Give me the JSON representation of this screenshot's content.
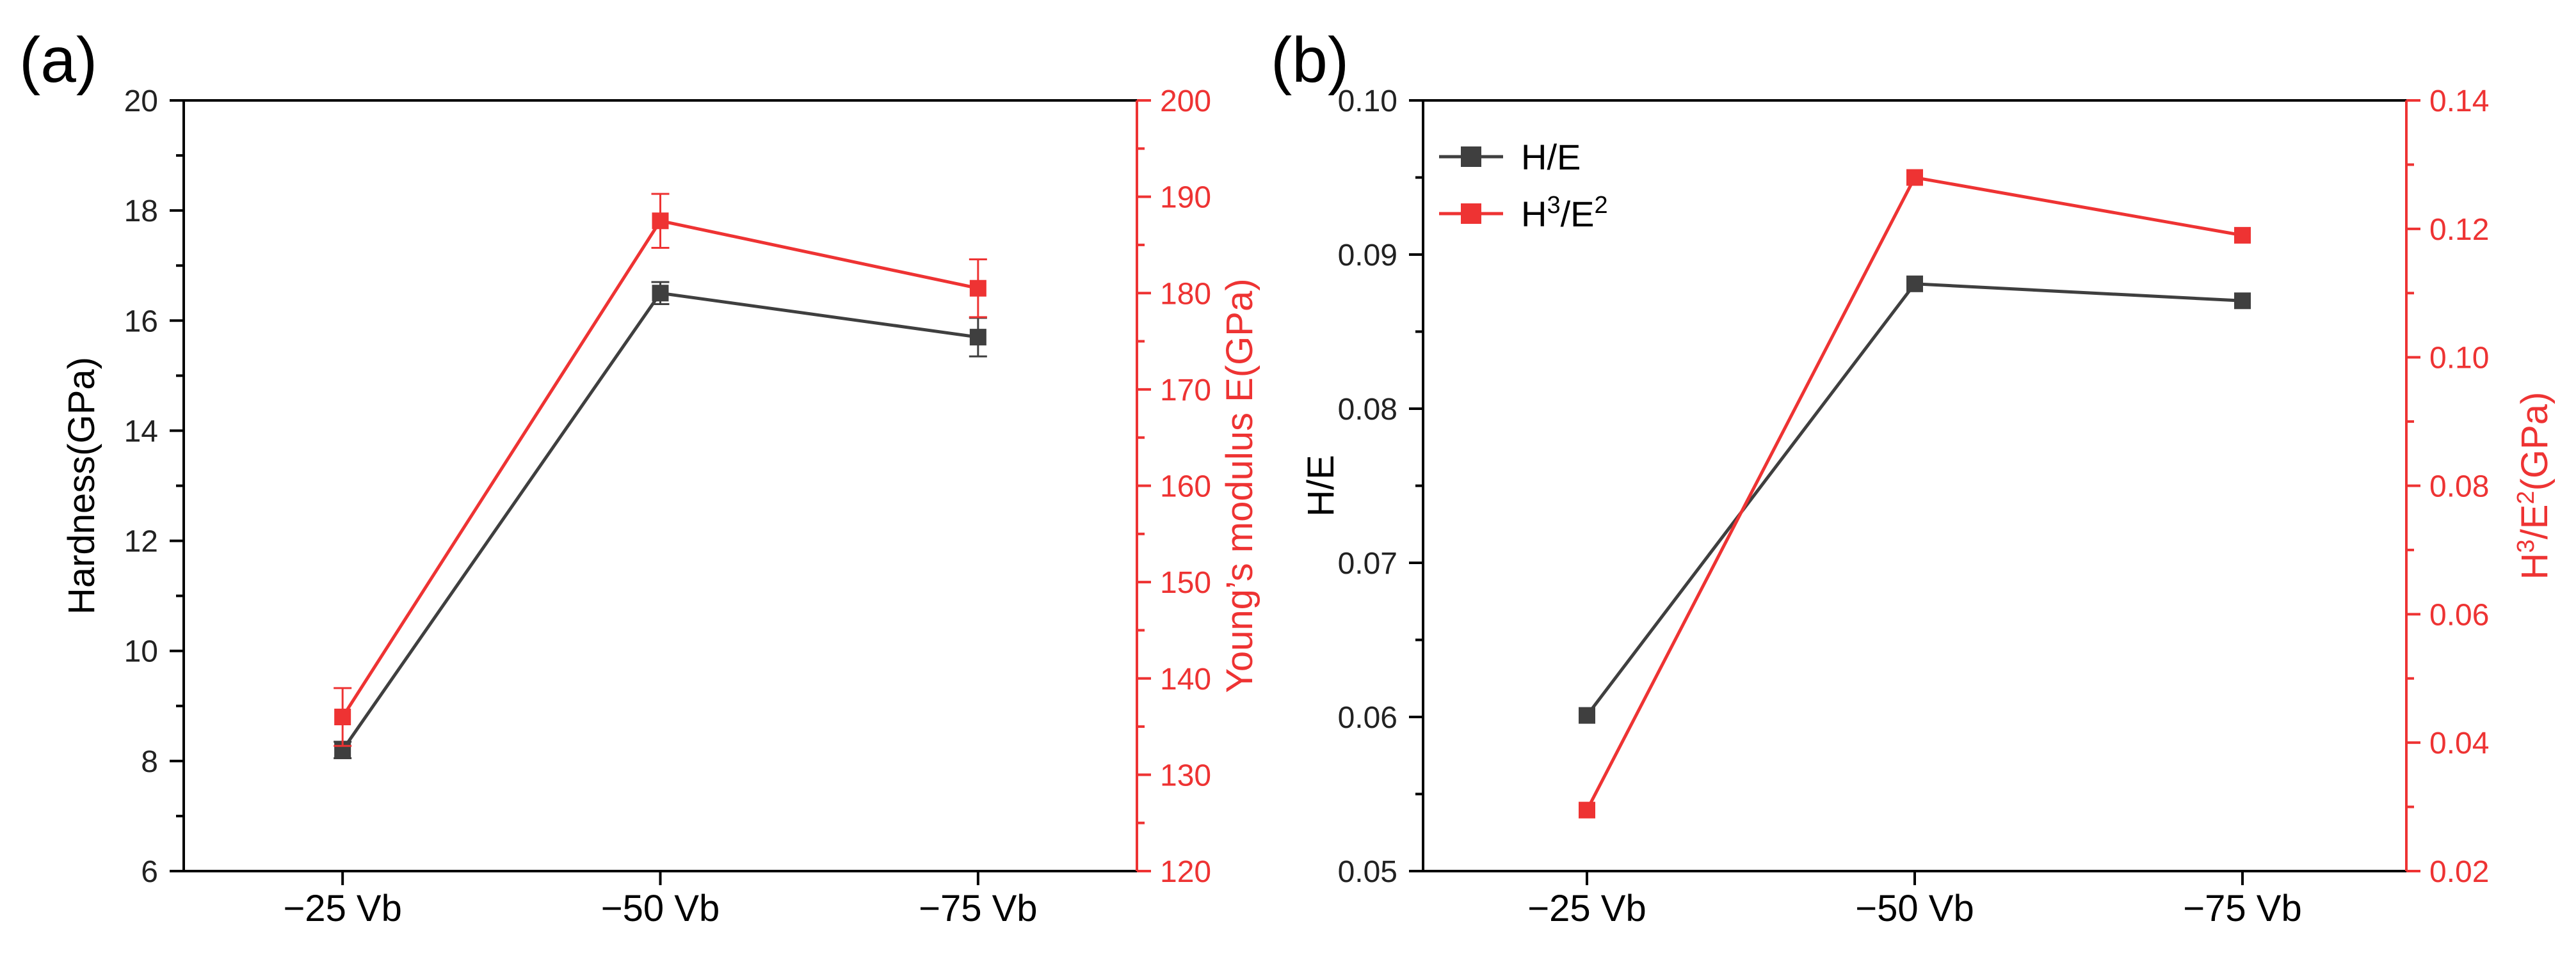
{
  "colors": {
    "axis": "#000000",
    "black_series": "#3f3f3f",
    "red_series": "#ee3333"
  },
  "chart_data": [
    {
      "panel_label": "(a)",
      "type": "line",
      "categories": [
        "−25 Vb",
        "−50 Vb",
        "−75 Vb"
      ],
      "left_axis": {
        "label": "Hardness(GPa)",
        "range": [
          6,
          20
        ],
        "ticks": [
          "6",
          "8",
          "10",
          "12",
          "14",
          "16",
          "18",
          "20"
        ]
      },
      "right_axis": {
        "label": "Young’s modulus E(GPa)",
        "range": [
          120,
          200
        ],
        "ticks": [
          "120",
          "130",
          "140",
          "150",
          "160",
          "170",
          "180",
          "190",
          "200"
        ]
      },
      "series": [
        {
          "name": "Hardness",
          "axis": "left",
          "color": "#3f3f3f",
          "values": [
            8.2,
            16.5,
            15.7
          ],
          "errors": [
            0.15,
            0.2,
            0.35
          ]
        },
        {
          "name": "Young's modulus E",
          "axis": "right",
          "color": "#ee3333",
          "values": [
            136.0,
            187.5,
            180.5
          ],
          "errors": [
            3.0,
            2.8,
            3.0
          ]
        }
      ],
      "legend": null
    },
    {
      "panel_label": "(b)",
      "type": "line",
      "categories": [
        "−25 Vb",
        "−50 Vb",
        "−75 Vb"
      ],
      "left_axis": {
        "label": "H/E",
        "range": [
          0.05,
          0.1
        ],
        "ticks": [
          "0.05",
          "0.06",
          "0.07",
          "0.08",
          "0.09",
          "0.10"
        ]
      },
      "right_axis": {
        "label_parts": [
          "H",
          "3",
          "/E",
          "2",
          "(GPa)"
        ],
        "range": [
          0.02,
          0.14
        ],
        "ticks": [
          "0.02",
          "0.04",
          "0.06",
          "0.08",
          "0.10",
          "0.12",
          "0.14"
        ]
      },
      "series": [
        {
          "name": "H/E",
          "axis": "left",
          "color": "#3f3f3f",
          "values": [
            0.0601,
            0.0881,
            0.087
          ]
        },
        {
          "name": "H3/E2",
          "axis": "right",
          "color": "#ee3333",
          "values": [
            0.0295,
            0.128,
            0.119
          ]
        }
      ],
      "legend": {
        "placement": "top-left",
        "entries": [
          {
            "series": 0,
            "parts": [
              "H/E"
            ]
          },
          {
            "series": 1,
            "parts": [
              "H",
              "3",
              "/E",
              "2"
            ]
          }
        ]
      }
    }
  ]
}
